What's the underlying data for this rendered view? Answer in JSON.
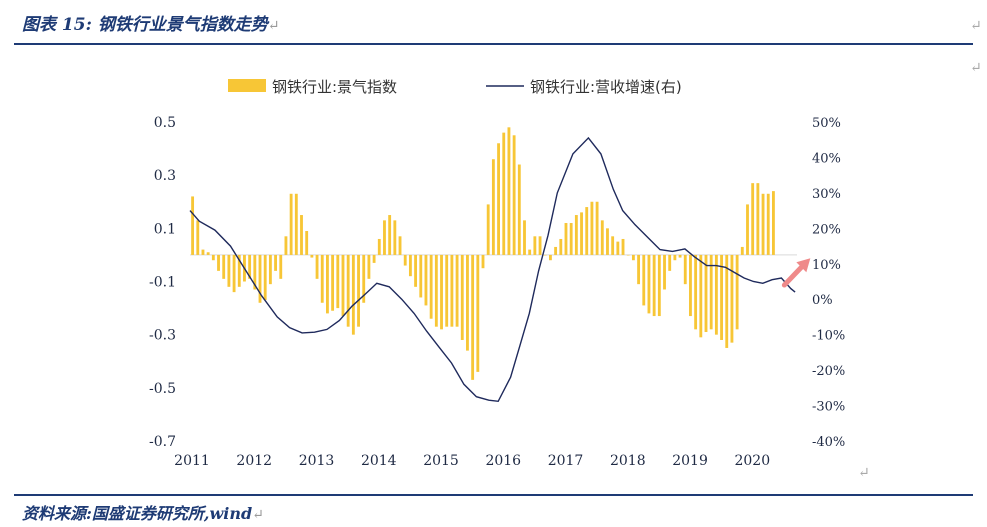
{
  "header": {
    "title": "图表 15:  钢铁行业景气指数走势"
  },
  "footer": {
    "source": "资料来源:国盛证券研究所,wind"
  },
  "marks": {
    "return_glyph": "↵"
  },
  "colors": {
    "bar": "#f7c636",
    "line": "#1f2a5c",
    "arrow": "#ef8a8a",
    "rule": "#1e3b75"
  },
  "chart_data": {
    "type": "bar+line",
    "title": "",
    "legend": {
      "placement": "top-center",
      "bar_label": "钢铁行业:景气指数",
      "line_label": "钢铁行业:营收增速(右)"
    },
    "x_labels": [
      "2011",
      "2012",
      "2013",
      "2014",
      "2015",
      "2016",
      "2017",
      "2018",
      "2019",
      "2020"
    ],
    "y_left": {
      "ticks": [
        "0.5",
        "0.3",
        "0.1",
        "-0.1",
        "-0.3",
        "-0.5",
        "-0.7"
      ],
      "ylim": [
        -0.7,
        0.5
      ]
    },
    "y_right": {
      "ticks": [
        "50%",
        "40%",
        "30%",
        "20%",
        "10%",
        "0%",
        "-10%",
        "-20%",
        "-30%",
        "-40%"
      ],
      "ylim": [
        -40,
        50
      ]
    },
    "x_range": [
      2011.0,
      2020.75
    ],
    "bars": {
      "name": "钢铁行业:景气指数",
      "start": 2011.0,
      "step": 0.0833,
      "values": [
        0.22,
        0.13,
        0.02,
        0.01,
        -0.02,
        -0.06,
        -0.09,
        -0.12,
        -0.14,
        -0.12,
        -0.1,
        -0.09,
        -0.13,
        -0.18,
        -0.17,
        -0.11,
        -0.06,
        -0.09,
        0.07,
        0.23,
        0.23,
        0.15,
        0.09,
        -0.01,
        -0.09,
        -0.18,
        -0.22,
        -0.21,
        -0.2,
        -0.23,
        -0.27,
        -0.3,
        -0.27,
        -0.18,
        -0.09,
        -0.03,
        0.06,
        0.13,
        0.15,
        0.13,
        0.07,
        -0.04,
        -0.08,
        -0.12,
        -0.16,
        -0.19,
        -0.24,
        -0.27,
        -0.28,
        -0.27,
        -0.27,
        -0.27,
        -0.32,
        -0.36,
        -0.47,
        -0.44,
        -0.05,
        0.19,
        0.36,
        0.42,
        0.46,
        0.48,
        0.45,
        0.34,
        0.13,
        0.02,
        0.07,
        0.07,
        0.0,
        -0.02,
        0.03,
        0.06,
        0.12,
        0.12,
        0.15,
        0.16,
        0.18,
        0.2,
        0.2,
        0.13,
        0.1,
        0.07,
        0.05,
        0.06,
        0.0,
        -0.02,
        -0.11,
        -0.19,
        -0.22,
        -0.23,
        -0.23,
        -0.13,
        -0.06,
        -0.02,
        -0.01,
        -0.11,
        -0.23,
        -0.28,
        -0.31,
        -0.29,
        -0.28,
        -0.3,
        -0.32,
        -0.35,
        -0.33,
        -0.28,
        0.03,
        0.19,
        0.27,
        0.27,
        0.23,
        0.23,
        0.24
      ]
    },
    "line": {
      "name": "钢铁行业:营收增速(右)",
      "points": [
        [
          2011.0,
          25
        ],
        [
          2011.15,
          22
        ],
        [
          2011.4,
          19.5
        ],
        [
          2011.65,
          15
        ],
        [
          2011.9,
          8
        ],
        [
          2012.15,
          1
        ],
        [
          2012.4,
          -5
        ],
        [
          2012.6,
          -8
        ],
        [
          2012.8,
          -9.5
        ],
        [
          2013.0,
          -9.3
        ],
        [
          2013.2,
          -8.5
        ],
        [
          2013.4,
          -6
        ],
        [
          2013.6,
          -2
        ],
        [
          2013.85,
          2
        ],
        [
          2014.0,
          4.5
        ],
        [
          2014.2,
          3.5
        ],
        [
          2014.4,
          0
        ],
        [
          2014.6,
          -4
        ],
        [
          2014.8,
          -9
        ],
        [
          2015.0,
          -13.5
        ],
        [
          2015.2,
          -18
        ],
        [
          2015.4,
          -24
        ],
        [
          2015.6,
          -27.5
        ],
        [
          2015.8,
          -28.5
        ],
        [
          2015.95,
          -28.8
        ],
        [
          2016.15,
          -22
        ],
        [
          2016.3,
          -13
        ],
        [
          2016.45,
          -4
        ],
        [
          2016.6,
          8
        ],
        [
          2016.75,
          18
        ],
        [
          2016.9,
          30
        ],
        [
          2017.15,
          41
        ],
        [
          2017.4,
          45.5
        ],
        [
          2017.6,
          41
        ],
        [
          2017.8,
          31
        ],
        [
          2017.95,
          25
        ],
        [
          2018.15,
          21
        ],
        [
          2018.35,
          17.5
        ],
        [
          2018.55,
          14
        ],
        [
          2018.75,
          13.5
        ],
        [
          2018.9,
          14
        ],
        [
          2018.95,
          14.2
        ],
        [
          2019.1,
          12
        ],
        [
          2019.3,
          9.5
        ],
        [
          2019.45,
          9.5
        ],
        [
          2019.6,
          9
        ],
        [
          2019.75,
          7.5
        ],
        [
          2019.9,
          6
        ],
        [
          2020.05,
          5
        ],
        [
          2020.2,
          4.5
        ],
        [
          2020.35,
          5.5
        ],
        [
          2020.5,
          6
        ],
        [
          2020.65,
          3
        ],
        [
          2020.72,
          2
        ]
      ]
    },
    "annotations": [
      {
        "type": "arrow",
        "at_x": 2020.9,
        "from_y": 4,
        "to_y": 11,
        "meaning": "upward emphasis"
      }
    ]
  }
}
